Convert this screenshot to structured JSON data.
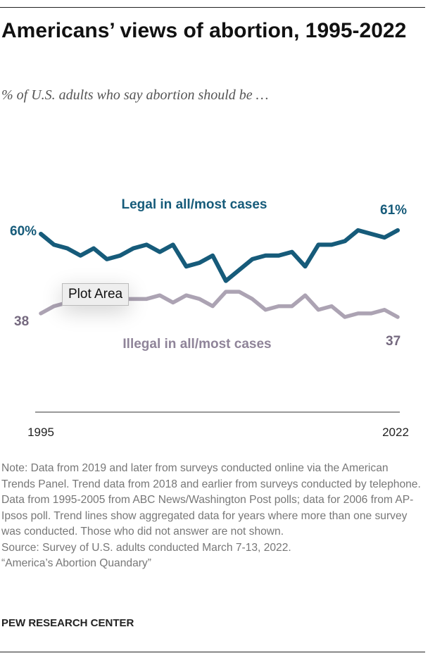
{
  "title": "Americans’ views of abortion, 1995-2022",
  "subtitle": "% of U.S. adults who say abortion should be …",
  "chart_data": {
    "type": "line",
    "x": [
      1995,
      1996,
      1997,
      1998,
      1999,
      2000,
      2001,
      2002,
      2003,
      2004,
      2005,
      2006,
      2007,
      2008,
      2009,
      2010,
      2011,
      2012,
      2013,
      2014,
      2015,
      2016,
      2017,
      2018,
      2019,
      2020,
      2021,
      2022
    ],
    "xtick_labels": [
      "1995",
      "2022"
    ],
    "series": [
      {
        "name": "Legal in all/most cases",
        "color": "#165b7a",
        "values": [
          60,
          57,
          56,
          54,
          56,
          53,
          54,
          56,
          57,
          55,
          57,
          51,
          52,
          54,
          47,
          50,
          53,
          54,
          54,
          55,
          51,
          57,
          57,
          58,
          61,
          60,
          59,
          61
        ],
        "start_label": "60%",
        "end_label": "61%"
      },
      {
        "name": "Illegal in all/most cases",
        "color": "#aca3b3",
        "values": [
          38,
          40,
          41,
          42,
          42,
          43,
          42,
          42,
          42,
          43,
          41,
          43,
          42,
          40,
          44,
          44,
          42,
          39,
          40,
          40,
          43,
          39,
          40,
          37,
          38,
          38,
          39,
          37
        ],
        "start_label": "38",
        "end_label": "37"
      }
    ],
    "ylim": [
      30,
      70
    ],
    "grid": false,
    "legend": "direct labels on lines"
  },
  "tooltip": "Plot Area",
  "note": "Note: Data from 2019 and later from surveys conducted online via the American Trends Panel. Trend data from 2018 and earlier from surveys conducted by telephone. Data from 1995-2005 from ABC News/Washington Post polls; data for 2006 from AP-Ipsos poll. Trend lines show aggregated data for years where more than one survey was conducted. Those who did not answer are not shown.",
  "source": "Source: Survey of U.S. adults conducted March 7-13, 2022.",
  "report": "“America’s Abortion Quandary”",
  "footer": "PEW RESEARCH CENTER"
}
